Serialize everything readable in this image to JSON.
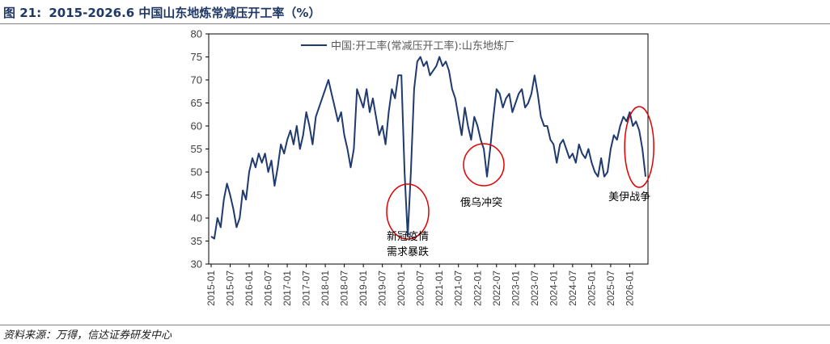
{
  "figure": {
    "number": "图 21:",
    "title": "2015-2026.6 中国山东地炼常减压开工率（%）",
    "source": "资料来源：万得，信达证券研发中心"
  },
  "chart_data": {
    "type": "line",
    "title": "",
    "xlabel": "",
    "ylabel": "",
    "ylim": [
      30,
      80
    ],
    "yticks": [
      30,
      35,
      40,
      45,
      50,
      55,
      60,
      65,
      70,
      75,
      80
    ],
    "xticks": [
      "2015-01",
      "2015-07",
      "2016-01",
      "2016-07",
      "2017-01",
      "2017-07",
      "2018-01",
      "2018-07",
      "2019-01",
      "2019-07",
      "2020-01",
      "2020-07",
      "2021-01",
      "2021-07",
      "2022-01",
      "2022-07",
      "2023-01",
      "2023-07",
      "2024-01",
      "2024-07",
      "2025-01",
      "2025-07",
      "2026-01"
    ],
    "xlim": [
      "2015-01",
      "2026-06"
    ],
    "grid": false,
    "legend_position": "top",
    "series": [
      {
        "name": "中国:开工率(常减压开工率):山东地炼厂",
        "color": "#1f3a6e",
        "points": [
          [
            "2015-01",
            36
          ],
          [
            "2015-02",
            35.5
          ],
          [
            "2015-03",
            40
          ],
          [
            "2015-04",
            38
          ],
          [
            "2015-05",
            44
          ],
          [
            "2015-06",
            47.5
          ],
          [
            "2015-07",
            45
          ],
          [
            "2015-08",
            42
          ],
          [
            "2015-09",
            38
          ],
          [
            "2015-10",
            40
          ],
          [
            "2015-11",
            46
          ],
          [
            "2015-12",
            44
          ],
          [
            "2016-01",
            50
          ],
          [
            "2016-02",
            53
          ],
          [
            "2016-03",
            51
          ],
          [
            "2016-04",
            54
          ],
          [
            "2016-05",
            52
          ],
          [
            "2016-06",
            54
          ],
          [
            "2016-07",
            50
          ],
          [
            "2016-08",
            52.5
          ],
          [
            "2016-09",
            47
          ],
          [
            "2016-10",
            51
          ],
          [
            "2016-11",
            56
          ],
          [
            "2016-12",
            54
          ],
          [
            "2017-01",
            57
          ],
          [
            "2017-02",
            59
          ],
          [
            "2017-03",
            56
          ],
          [
            "2017-04",
            60
          ],
          [
            "2017-05",
            55
          ],
          [
            "2017-06",
            58
          ],
          [
            "2017-07",
            63
          ],
          [
            "2017-08",
            60
          ],
          [
            "2017-09",
            56
          ],
          [
            "2017-10",
            62
          ],
          [
            "2017-11",
            64
          ],
          [
            "2017-12",
            66
          ],
          [
            "2018-01",
            68
          ],
          [
            "2018-02",
            70
          ],
          [
            "2018-03",
            67
          ],
          [
            "2018-04",
            64
          ],
          [
            "2018-05",
            61
          ],
          [
            "2018-06",
            63
          ],
          [
            "2018-07",
            58
          ],
          [
            "2018-08",
            55
          ],
          [
            "2018-09",
            51
          ],
          [
            "2018-10",
            55
          ],
          [
            "2018-11",
            68
          ],
          [
            "2018-12",
            66
          ],
          [
            "2019-01",
            64
          ],
          [
            "2019-02",
            68
          ],
          [
            "2019-03",
            63
          ],
          [
            "2019-04",
            66
          ],
          [
            "2019-05",
            62
          ],
          [
            "2019-06",
            58
          ],
          [
            "2019-07",
            60
          ],
          [
            "2019-08",
            56
          ],
          [
            "2019-09",
            63
          ],
          [
            "2019-10",
            68
          ],
          [
            "2019-11",
            66
          ],
          [
            "2019-12",
            71
          ],
          [
            "2020-01",
            71
          ],
          [
            "2020-02",
            50
          ],
          [
            "2020-03",
            36
          ],
          [
            "2020-04",
            50
          ],
          [
            "2020-05",
            68
          ],
          [
            "2020-06",
            74
          ],
          [
            "2020-07",
            75
          ],
          [
            "2020-08",
            73
          ],
          [
            "2020-09",
            74
          ],
          [
            "2020-10",
            71
          ],
          [
            "2020-11",
            72
          ],
          [
            "2020-12",
            73
          ],
          [
            "2021-01",
            75
          ],
          [
            "2021-02",
            73
          ],
          [
            "2021-03",
            74
          ],
          [
            "2021-04",
            72
          ],
          [
            "2021-05",
            68
          ],
          [
            "2021-06",
            66
          ],
          [
            "2021-07",
            62
          ],
          [
            "2021-08",
            58
          ],
          [
            "2021-09",
            64
          ],
          [
            "2021-10",
            60
          ],
          [
            "2021-11",
            57
          ],
          [
            "2021-12",
            62
          ],
          [
            "2022-01",
            60
          ],
          [
            "2022-02",
            57
          ],
          [
            "2022-03",
            55
          ],
          [
            "2022-04",
            49
          ],
          [
            "2022-05",
            55
          ],
          [
            "2022-06",
            62
          ],
          [
            "2022-07",
            68
          ],
          [
            "2022-08",
            67
          ],
          [
            "2022-09",
            64
          ],
          [
            "2022-10",
            66
          ],
          [
            "2022-11",
            67
          ],
          [
            "2022-12",
            63
          ],
          [
            "2023-01",
            65
          ],
          [
            "2023-02",
            67
          ],
          [
            "2023-03",
            68
          ],
          [
            "2023-04",
            64
          ],
          [
            "2023-05",
            65
          ],
          [
            "2023-06",
            67
          ],
          [
            "2023-07",
            71
          ],
          [
            "2023-08",
            67
          ],
          [
            "2023-09",
            62
          ],
          [
            "2023-10",
            60
          ],
          [
            "2023-11",
            60
          ],
          [
            "2023-12",
            57
          ],
          [
            "2024-01",
            56
          ],
          [
            "2024-02",
            52
          ],
          [
            "2024-03",
            56
          ],
          [
            "2024-04",
            57
          ],
          [
            "2024-05",
            55
          ],
          [
            "2024-06",
            53
          ],
          [
            "2024-07",
            54
          ],
          [
            "2024-08",
            52
          ],
          [
            "2024-09",
            56
          ],
          [
            "2024-10",
            54
          ],
          [
            "2024-11",
            53
          ],
          [
            "2024-12",
            55
          ],
          [
            "2025-01",
            52
          ],
          [
            "2025-02",
            50
          ],
          [
            "2025-03",
            49
          ],
          [
            "2025-04",
            53
          ],
          [
            "2025-05",
            49
          ],
          [
            "2025-06",
            50
          ],
          [
            "2025-07",
            55
          ],
          [
            "2025-08",
            58
          ],
          [
            "2025-09",
            57
          ],
          [
            "2025-10",
            60
          ],
          [
            "2025-11",
            62
          ],
          [
            "2025-12",
            61
          ],
          [
            "2026-01",
            63
          ],
          [
            "2026-02",
            60
          ],
          [
            "2026-03",
            61
          ],
          [
            "2026-04",
            59
          ],
          [
            "2026-05",
            55
          ],
          [
            "2026-06",
            49
          ]
        ]
      }
    ],
    "annotations": [
      {
        "text": [
          "新冠疫情",
          "需求暴跌"
        ],
        "at": "2020-03",
        "ring_color": "#e00000"
      },
      {
        "text": [
          "俄乌冲突"
        ],
        "at": "2022-04",
        "ring_color": "#e00000"
      },
      {
        "text": [
          "美伊战争"
        ],
        "at": "2026-04",
        "ring_color": "#e00000"
      }
    ]
  }
}
